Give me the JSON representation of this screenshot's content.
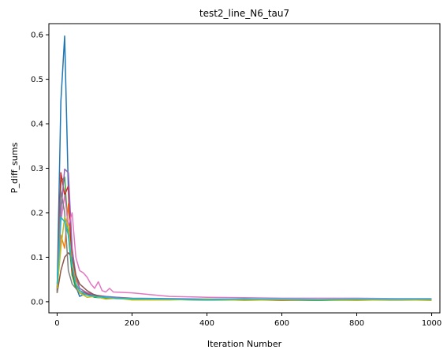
{
  "chart_data": {
    "type": "line",
    "title": "test2_line_N6_tau7",
    "xlabel": "Iteration Number",
    "ylabel": "P_diff_sums",
    "xlim": [
      -22,
      1022
    ],
    "ylim": [
      -0.025,
      0.625
    ],
    "xticks": [
      0,
      200,
      400,
      600,
      800,
      1000
    ],
    "yticks": [
      0.0,
      0.1,
      0.2,
      0.3,
      0.4,
      0.5,
      0.6
    ],
    "xtick_labels": [
      "0",
      "200",
      "400",
      "600",
      "800",
      "1000"
    ],
    "ytick_labels": [
      "0.0",
      "0.1",
      "0.2",
      "0.3",
      "0.4",
      "0.5",
      "0.6"
    ],
    "grid": false,
    "legend": "none",
    "series": [
      {
        "color": "#1f77b4",
        "x": [
          0,
          10,
          20,
          30,
          40,
          50,
          60,
          80,
          100,
          130,
          160,
          200,
          300,
          400,
          500,
          600,
          700,
          800,
          900,
          1000
        ],
        "values": [
          0.03,
          0.45,
          0.597,
          0.25,
          0.06,
          0.035,
          0.012,
          0.02,
          0.016,
          0.008,
          0.01,
          0.006,
          0.005,
          0.004,
          0.006,
          0.004,
          0.003,
          0.006,
          0.004,
          0.005
        ]
      },
      {
        "color": "#ff7f0e",
        "x": [
          0,
          10,
          20,
          30,
          40,
          50,
          60,
          80,
          100,
          130,
          160,
          200,
          300,
          400,
          500,
          600,
          700,
          800,
          900,
          1000
        ],
        "values": [
          0.02,
          0.15,
          0.12,
          0.22,
          0.1,
          0.05,
          0.03,
          0.02,
          0.015,
          0.01,
          0.008,
          0.006,
          0.005,
          0.004,
          0.005,
          0.003,
          0.004,
          0.005,
          0.004,
          0.004
        ]
      },
      {
        "color": "#2ca02c",
        "x": [
          0,
          10,
          20,
          30,
          40,
          50,
          60,
          80,
          100,
          130,
          160,
          200,
          300,
          400,
          500,
          600,
          700,
          800,
          900,
          1000
        ],
        "values": [
          0.02,
          0.27,
          0.28,
          0.15,
          0.06,
          0.03,
          0.02,
          0.015,
          0.01,
          0.008,
          0.007,
          0.006,
          0.005,
          0.004,
          0.004,
          0.004,
          0.003,
          0.004,
          0.004,
          0.004
        ]
      },
      {
        "color": "#d62728",
        "x": [
          0,
          10,
          20,
          30,
          40,
          50,
          60,
          80,
          100,
          130,
          160,
          200,
          300,
          400,
          500,
          600,
          700,
          800,
          900,
          1000
        ],
        "values": [
          0.025,
          0.29,
          0.24,
          0.26,
          0.07,
          0.04,
          0.025,
          0.018,
          0.012,
          0.01,
          0.008,
          0.007,
          0.006,
          0.005,
          0.005,
          0.006,
          0.004,
          0.005,
          0.006,
          0.005
        ]
      },
      {
        "color": "#9467bd",
        "x": [
          0,
          10,
          20,
          30,
          40,
          50,
          60,
          80,
          100,
          130,
          160,
          200,
          300,
          400,
          500,
          600,
          700,
          800,
          900,
          1000
        ],
        "values": [
          0.03,
          0.2,
          0.298,
          0.29,
          0.12,
          0.06,
          0.03,
          0.02,
          0.015,
          0.012,
          0.01,
          0.008,
          0.007,
          0.006,
          0.006,
          0.005,
          0.005,
          0.006,
          0.005,
          0.005
        ]
      },
      {
        "color": "#8c564b",
        "x": [
          0,
          10,
          20,
          30,
          40,
          50,
          60,
          80,
          100,
          130,
          160,
          200,
          300,
          400,
          500,
          600,
          700,
          800,
          900,
          1000
        ],
        "values": [
          0.02,
          0.07,
          0.1,
          0.11,
          0.1,
          0.06,
          0.04,
          0.025,
          0.015,
          0.01,
          0.008,
          0.007,
          0.006,
          0.005,
          0.005,
          0.005,
          0.004,
          0.005,
          0.005,
          0.004
        ]
      },
      {
        "color": "#e377c2",
        "x": [
          0,
          10,
          20,
          30,
          40,
          50,
          60,
          70,
          80,
          90,
          100,
          110,
          120,
          130,
          140,
          150,
          200,
          250,
          300,
          400,
          500,
          600,
          700,
          800,
          900,
          1000
        ],
        "values": [
          0.03,
          0.18,
          0.24,
          0.17,
          0.2,
          0.1,
          0.07,
          0.065,
          0.055,
          0.04,
          0.03,
          0.045,
          0.025,
          0.022,
          0.03,
          0.022,
          0.02,
          0.016,
          0.012,
          0.01,
          0.009,
          0.008,
          0.008,
          0.008,
          0.007,
          0.007
        ]
      },
      {
        "color": "#7f7f7f",
        "x": [
          0,
          10,
          20,
          30,
          40,
          50,
          60,
          80,
          100,
          130,
          160,
          200,
          300,
          400,
          500,
          600,
          700,
          800,
          900,
          1000
        ],
        "values": [
          0.02,
          0.25,
          0.2,
          0.07,
          0.04,
          0.03,
          0.02,
          0.015,
          0.012,
          0.01,
          0.008,
          0.007,
          0.006,
          0.005,
          0.005,
          0.004,
          0.004,
          0.005,
          0.004,
          0.004
        ]
      },
      {
        "color": "#bcbd22",
        "x": [
          0,
          10,
          20,
          30,
          40,
          50,
          60,
          80,
          100,
          130,
          160,
          200,
          300,
          400,
          500,
          600,
          700,
          800,
          900,
          1000
        ],
        "values": [
          0.03,
          0.12,
          0.19,
          0.17,
          0.08,
          0.04,
          0.02,
          0.01,
          0.012,
          0.006,
          0.008,
          0.004,
          0.004,
          0.006,
          0.003,
          0.005,
          0.004,
          0.003,
          0.005,
          0.003
        ]
      },
      {
        "color": "#17becf",
        "x": [
          0,
          10,
          20,
          30,
          40,
          50,
          60,
          80,
          100,
          130,
          160,
          200,
          300,
          400,
          500,
          600,
          700,
          800,
          900,
          1000
        ],
        "values": [
          0.04,
          0.19,
          0.18,
          0.15,
          0.08,
          0.04,
          0.025,
          0.015,
          0.012,
          0.01,
          0.008,
          0.007,
          0.006,
          0.005,
          0.006,
          0.006,
          0.005,
          0.006,
          0.006,
          0.006
        ]
      }
    ]
  }
}
